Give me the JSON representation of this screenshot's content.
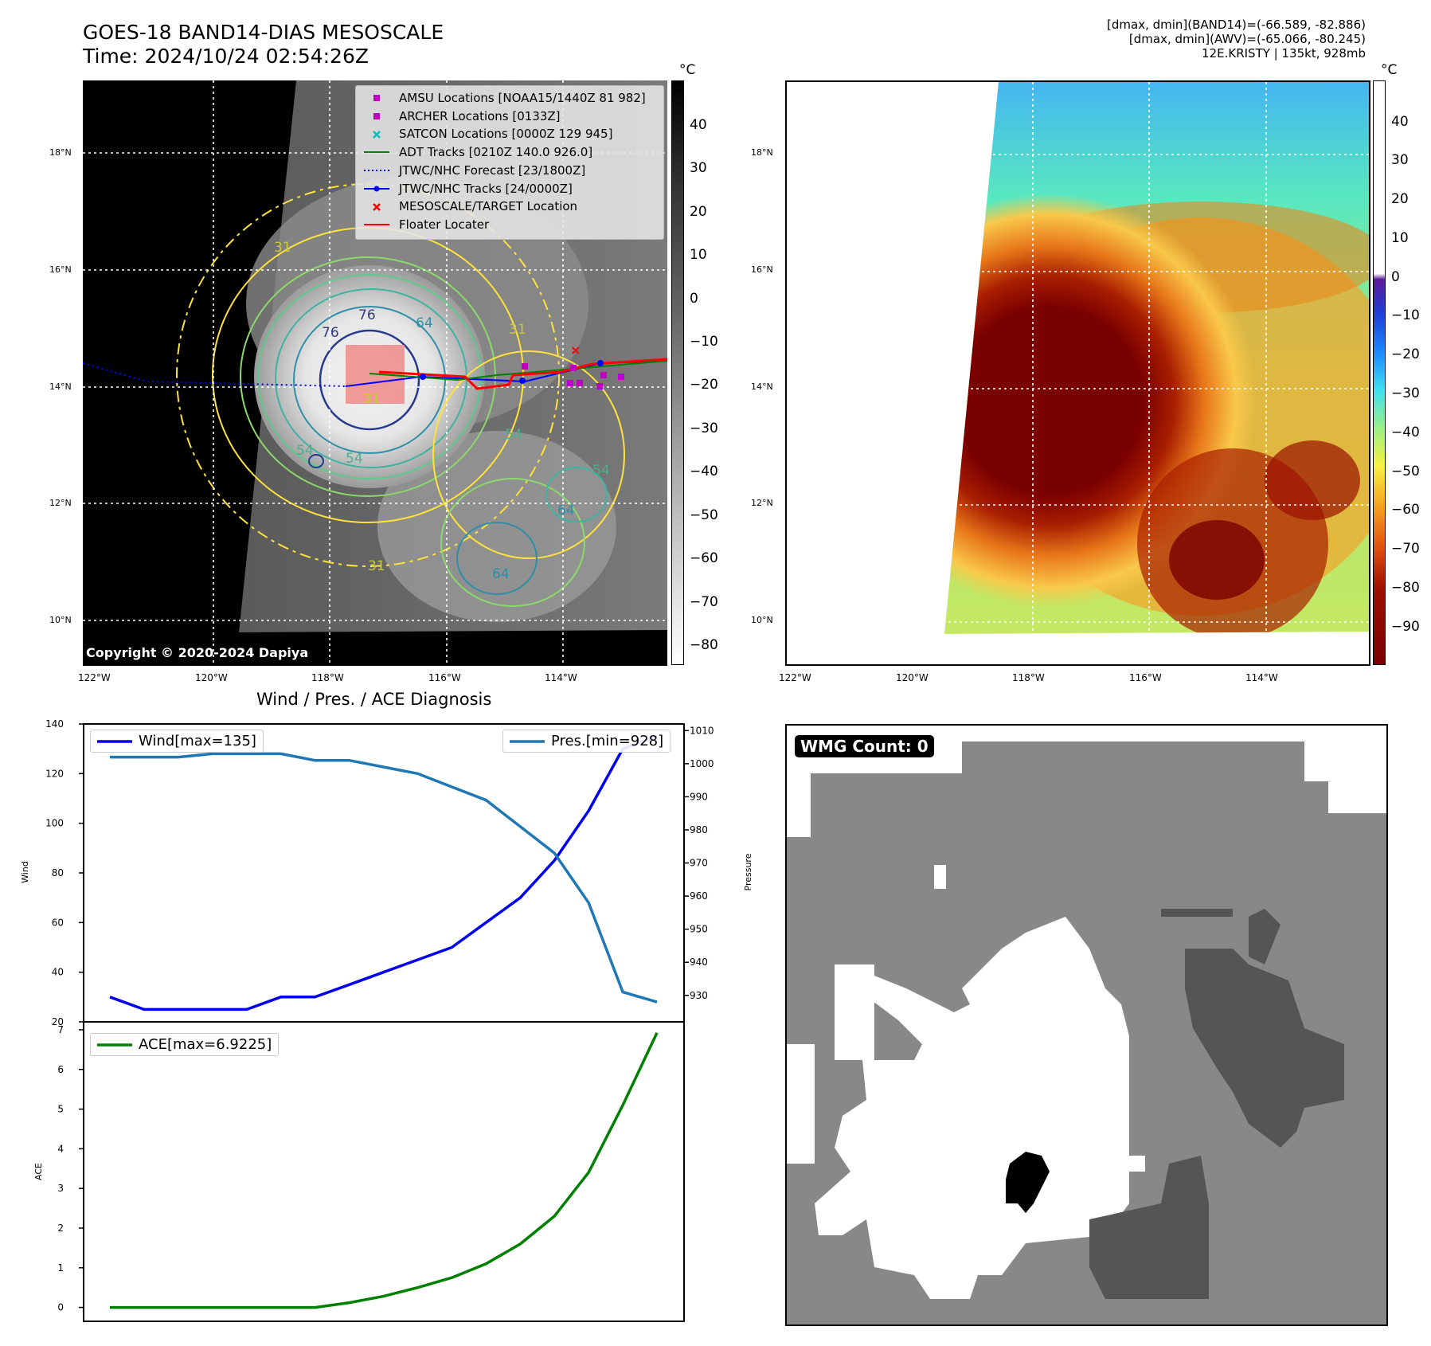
{
  "header": {
    "title_line1": "GOES-18 BAND14-DIAS MESOSCALE",
    "title_line2": "Time: 2024/10/24 02:54:26Z",
    "info_line1": "[dmax, dmin](BAND14)=(-66.589, -82.886)",
    "info_line2": "[dmax, dmin](AWV)=(-65.066, -80.245)",
    "info_line3": "12E.KRISTY | 135kt, 928mb"
  },
  "map": {
    "lat_labels": [
      "18°N",
      "16°N",
      "14°N",
      "12°N",
      "10°N"
    ],
    "lon_labels": [
      "122°W",
      "120°W",
      "118°W",
      "116°W",
      "114°W"
    ],
    "copyright": "Copyright © 2020-2024 Dapiya",
    "contour_labels": [
      "76",
      "76",
      "64",
      "64",
      "64",
      "54",
      "54",
      "54",
      "54",
      "31",
      "31",
      "31",
      "31"
    ],
    "legend": [
      {
        "label": "AMSU Locations [NOAA15/1440Z 81 982]",
        "marker": "square",
        "color": "#bf00bf"
      },
      {
        "label": "ARCHER Locations [0133Z]",
        "marker": "square",
        "color": "#bf00bf"
      },
      {
        "label": "SATCON Locations [0000Z 129 945]",
        "marker": "x",
        "color": "#00bfbf"
      },
      {
        "label": "ADT Tracks [0210Z 140.0 926.0]",
        "marker": "line",
        "color": "#008000"
      },
      {
        "label": "JTWC/NHC Forecast [23/1800Z]",
        "marker": "dotted",
        "color": "#0000ff"
      },
      {
        "label": "JTWC/NHC Tracks [24/0000Z]",
        "marker": "line-dot",
        "color": "#0000ff"
      },
      {
        "label": "MESOSCALE/TARGET Location",
        "marker": "x",
        "color": "#ff0000"
      },
      {
        "label": "Floater Locater",
        "marker": "line",
        "color": "#ff0000"
      }
    ]
  },
  "colorbar_gray": {
    "unit": "°C",
    "ticks": [
      "40",
      "30",
      "20",
      "10",
      "0",
      "−10",
      "−20",
      "−30",
      "−40",
      "−50",
      "−60",
      "−70",
      "−80"
    ]
  },
  "colorbar_color": {
    "unit": "°C",
    "ticks": [
      "40",
      "30",
      "20",
      "10",
      "0",
      "−10",
      "−20",
      "−30",
      "−40",
      "−50",
      "−60",
      "−70",
      "−80",
      "−90"
    ]
  },
  "diagnosis": {
    "title": "Wind / Pres. / ACE Diagnosis",
    "wind_ylabel": "Wind",
    "pres_ylabel": "Pressure",
    "ace_ylabel": "ACE",
    "wind_legend": "Wind[max=135]",
    "pres_legend": "Pres.[min=928]",
    "ace_legend": "ACE[max=6.9225]"
  },
  "wmg": {
    "label": "WMG Count: 0"
  },
  "chart_data": [
    {
      "type": "line",
      "title": "Wind / Pres. / ACE Diagnosis",
      "ylabel": "Wind",
      "ylim": [
        20,
        140
      ],
      "y_ticks": [
        20,
        40,
        60,
        80,
        100,
        120,
        140
      ],
      "series": [
        {
          "name": "Wind[max=135]",
          "color": "#0000ee",
          "values": [
            30,
            25,
            25,
            25,
            25,
            30,
            30,
            35,
            40,
            45,
            50,
            60,
            70,
            85,
            105,
            130,
            135
          ]
        }
      ]
    },
    {
      "type": "line",
      "ylabel": "Pressure",
      "ylim": [
        922,
        1012
      ],
      "y_ticks": [
        930,
        940,
        950,
        960,
        970,
        980,
        990,
        1000,
        1010
      ],
      "series": [
        {
          "name": "Pres.[min=928]",
          "color": "#1f77b4",
          "values": [
            1002,
            1002,
            1002,
            1003,
            1003,
            1003,
            1001,
            1001,
            999,
            997,
            993,
            989,
            981,
            973,
            958,
            931,
            928
          ]
        }
      ]
    },
    {
      "type": "line",
      "ylabel": "ACE",
      "ylim": [
        -0.35,
        7.2
      ],
      "y_ticks": [
        0,
        1,
        2,
        3,
        4,
        5,
        6,
        7
      ],
      "series": [
        {
          "name": "ACE[max=6.9225]",
          "color": "#008000",
          "values": [
            0,
            0,
            0,
            0,
            0,
            0,
            0,
            0.12,
            0.28,
            0.5,
            0.75,
            1.1,
            1.6,
            2.3,
            3.4,
            5.1,
            6.9225
          ]
        }
      ]
    }
  ]
}
